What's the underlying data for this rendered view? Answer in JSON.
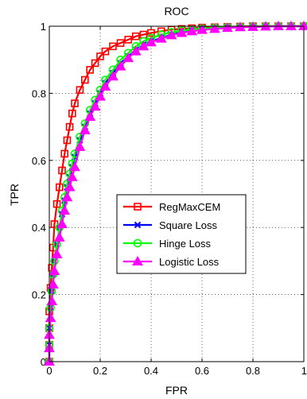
{
  "chart_data": {
    "type": "line",
    "title": "ROC",
    "xlabel": "FPR",
    "ylabel": "TPR",
    "xlim": [
      0,
      1
    ],
    "ylim": [
      0,
      1
    ],
    "xticks": [
      "0",
      "0.2",
      "0.4",
      "0.6",
      "0.8",
      "1"
    ],
    "yticks": [
      "0",
      "0.2",
      "0.4",
      "0.6",
      "0.8",
      "1"
    ],
    "grid": true,
    "legend_position": "center-left",
    "series": [
      {
        "name": "RegMaxCEM",
        "color": "#ff0000",
        "marker": "square",
        "x": [
          0,
          0,
          0,
          0,
          0.005,
          0.01,
          0.015,
          0.02,
          0.03,
          0.04,
          0.05,
          0.06,
          0.07,
          0.08,
          0.09,
          0.1,
          0.12,
          0.14,
          0.16,
          0.18,
          0.2,
          0.22,
          0.25,
          0.28,
          0.31,
          0.34,
          0.37,
          0.4,
          0.44,
          0.48,
          0.52,
          0.56,
          0.6,
          0.65,
          0.7,
          0.75,
          0.8,
          0.85,
          0.9,
          0.95,
          1.0
        ],
        "y": [
          0,
          0.05,
          0.1,
          0.15,
          0.22,
          0.28,
          0.34,
          0.41,
          0.47,
          0.52,
          0.57,
          0.62,
          0.66,
          0.7,
          0.74,
          0.77,
          0.81,
          0.84,
          0.87,
          0.89,
          0.91,
          0.925,
          0.94,
          0.95,
          0.96,
          0.97,
          0.975,
          0.98,
          0.985,
          0.99,
          0.992,
          0.994,
          0.996,
          0.997,
          0.998,
          0.999,
          1.0,
          1.0,
          1.0,
          1.0,
          1.0
        ]
      },
      {
        "name": "Square Loss",
        "color": "#0000ff",
        "marker": "x",
        "x": [
          0,
          0,
          0,
          0.005,
          0.01,
          0.015,
          0.02,
          0.03,
          0.04,
          0.05,
          0.06,
          0.07,
          0.08,
          0.09,
          0.1,
          0.12,
          0.14,
          0.16,
          0.18,
          0.2,
          0.22,
          0.25,
          0.28,
          0.31,
          0.34,
          0.37,
          0.4,
          0.44,
          0.48,
          0.52,
          0.56,
          0.6,
          0.65,
          0.7,
          0.75,
          0.8,
          0.85,
          0.9,
          0.95,
          1.0
        ],
        "y": [
          0,
          0.05,
          0.1,
          0.16,
          0.21,
          0.26,
          0.3,
          0.35,
          0.4,
          0.44,
          0.48,
          0.52,
          0.55,
          0.58,
          0.61,
          0.66,
          0.7,
          0.74,
          0.77,
          0.8,
          0.83,
          0.86,
          0.89,
          0.91,
          0.93,
          0.945,
          0.955,
          0.965,
          0.975,
          0.982,
          0.987,
          0.99,
          0.993,
          0.995,
          0.997,
          0.998,
          0.999,
          1.0,
          1.0,
          1.0
        ]
      },
      {
        "name": "Hinge Loss",
        "color": "#00ff00",
        "marker": "circle",
        "x": [
          0,
          0,
          0,
          0.005,
          0.01,
          0.015,
          0.02,
          0.03,
          0.04,
          0.05,
          0.06,
          0.07,
          0.08,
          0.09,
          0.1,
          0.12,
          0.14,
          0.16,
          0.18,
          0.2,
          0.22,
          0.25,
          0.28,
          0.31,
          0.34,
          0.37,
          0.4,
          0.44,
          0.48,
          0.52,
          0.56,
          0.6,
          0.65,
          0.7,
          0.75,
          0.8,
          0.85,
          0.9,
          0.95,
          1.0
        ],
        "y": [
          0,
          0.05,
          0.1,
          0.16,
          0.21,
          0.26,
          0.3,
          0.35,
          0.4,
          0.45,
          0.49,
          0.53,
          0.56,
          0.59,
          0.62,
          0.67,
          0.71,
          0.75,
          0.78,
          0.81,
          0.84,
          0.87,
          0.9,
          0.92,
          0.94,
          0.955,
          0.965,
          0.975,
          0.982,
          0.987,
          0.99,
          0.993,
          0.995,
          0.997,
          0.998,
          0.999,
          1.0,
          1.0,
          1.0,
          1.0
        ]
      },
      {
        "name": "Logistic Loss",
        "color": "#ff00ff",
        "marker": "triangle",
        "x": [
          0,
          0,
          0,
          0.005,
          0.01,
          0.015,
          0.02,
          0.03,
          0.04,
          0.05,
          0.06,
          0.07,
          0.08,
          0.09,
          0.1,
          0.12,
          0.14,
          0.16,
          0.18,
          0.2,
          0.22,
          0.25,
          0.28,
          0.31,
          0.34,
          0.37,
          0.4,
          0.44,
          0.48,
          0.52,
          0.56,
          0.6,
          0.65,
          0.7,
          0.75,
          0.8,
          0.85,
          0.9,
          0.95,
          1.0
        ],
        "y": [
          0,
          0.04,
          0.08,
          0.13,
          0.18,
          0.23,
          0.27,
          0.32,
          0.37,
          0.41,
          0.45,
          0.49,
          0.52,
          0.55,
          0.58,
          0.64,
          0.69,
          0.73,
          0.76,
          0.79,
          0.82,
          0.85,
          0.88,
          0.905,
          0.925,
          0.94,
          0.952,
          0.963,
          0.973,
          0.98,
          0.985,
          0.989,
          0.992,
          0.995,
          0.997,
          0.998,
          0.999,
          1.0,
          1.0,
          1.0
        ]
      }
    ]
  }
}
